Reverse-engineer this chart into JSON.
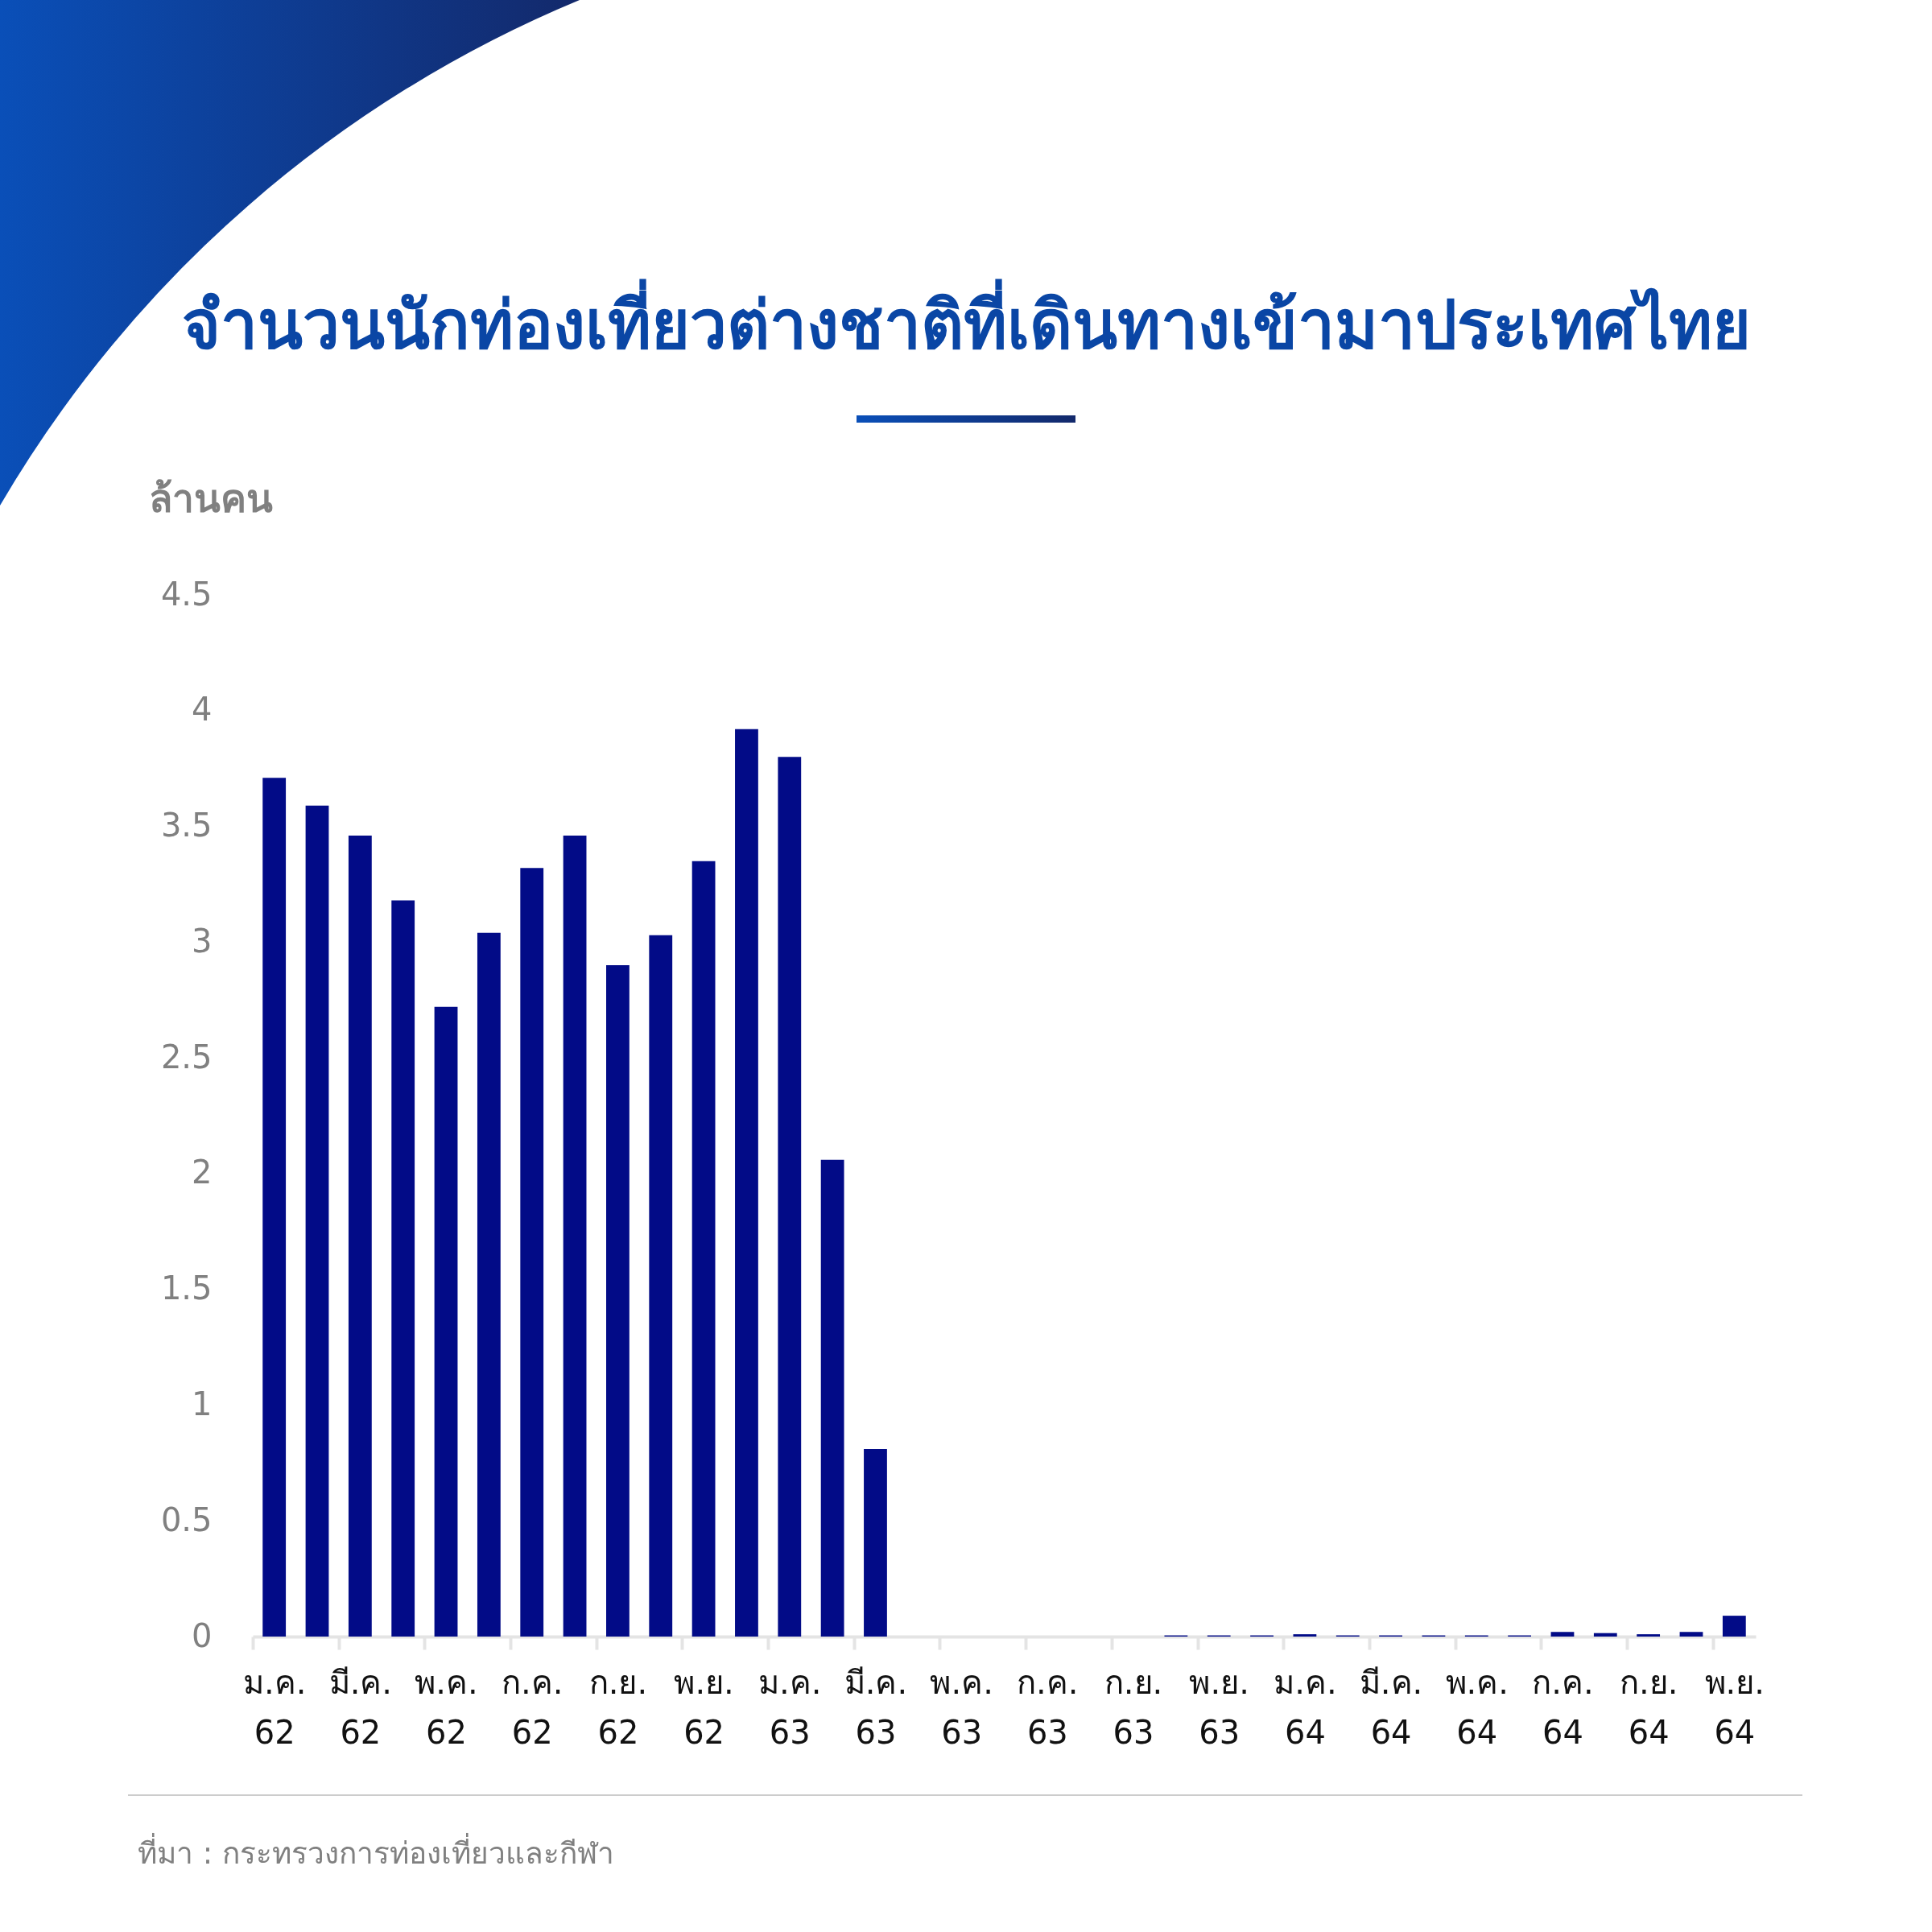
{
  "chart_data": {
    "type": "bar",
    "title": "จำนวนนักท่องเที่ยวต่างชาติที่เดินทางเข้ามาประเทศไทย",
    "ylabel": "ล้านคน",
    "annotations": [
      "ที่มา : กระทรวงการท่องเที่ยวและกีฬา"
    ],
    "categories": [
      "ม.ค. 62",
      null,
      "มี.ค. 62",
      null,
      "พ.ค. 62",
      null,
      "ก.ค. 62",
      null,
      "ก.ย. 62",
      null,
      "พ.ย. 62",
      null,
      "ม.ค. 63",
      null,
      "มี.ค. 63",
      null,
      "พ.ค. 63",
      null,
      "ก.ค. 63",
      null,
      "ก.ย. 63",
      null,
      "พ.ย. 63",
      null,
      "ม.ค. 64",
      null,
      "มี.ค. 64",
      null,
      "พ.ค. 64",
      null,
      "ก.ค. 64",
      null,
      "ก.ย. 64",
      null,
      "พ.ย. 64"
    ],
    "values": [
      3.71,
      3.59,
      3.46,
      3.18,
      2.72,
      3.04,
      3.32,
      3.46,
      2.9,
      3.03,
      3.35,
      3.92,
      3.8,
      2.06,
      0.81,
      0,
      0,
      0,
      0,
      0,
      0,
      0.005,
      0.005,
      0.005,
      0.01,
      0.005,
      0.005,
      0.005,
      0.005,
      0.005,
      0.02,
      0.015,
      0.01,
      0.02,
      0.09
    ],
    "color": "#020b87",
    "ylim": [
      0,
      4.5
    ],
    "yticks": [
      0,
      0.5,
      1,
      1.5,
      2,
      2.5,
      3,
      3.5,
      4,
      4.5
    ]
  }
}
